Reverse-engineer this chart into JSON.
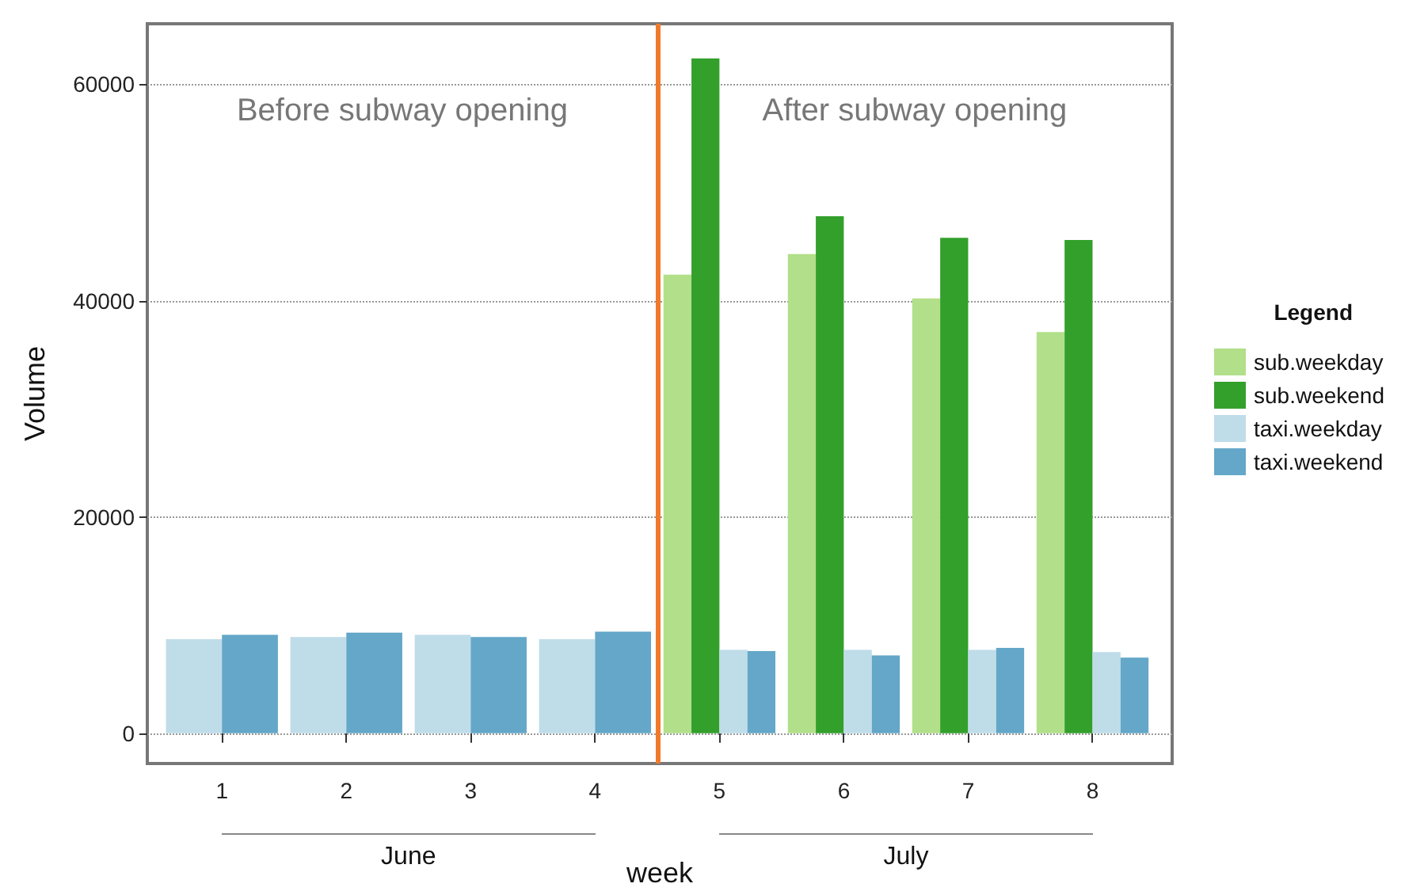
{
  "chart_data": {
    "type": "bar",
    "xlabel": "week",
    "ylabel": "Volume",
    "legend_title": "Legend",
    "x": [
      1,
      2,
      3,
      4,
      5,
      6,
      7,
      8
    ],
    "series": [
      {
        "name": "sub.weekday",
        "color": "#b2df8a",
        "values": [
          null,
          null,
          null,
          null,
          42400,
          44300,
          40200,
          37100
        ]
      },
      {
        "name": "sub.weekend",
        "color": "#33a02c",
        "values": [
          null,
          null,
          null,
          null,
          62400,
          47800,
          45800,
          45600
        ]
      },
      {
        "name": "taxi.weekday",
        "color": "#bfdce9",
        "values": [
          8700,
          8900,
          9100,
          8700,
          7700,
          7700,
          7700,
          7500
        ]
      },
      {
        "name": "taxi.weekend",
        "color": "#64a7c8",
        "values": [
          9100,
          9300,
          8900,
          9400,
          7600,
          7200,
          7900,
          7000
        ]
      }
    ],
    "xlim": [
      0.4,
      8.64
    ],
    "xticks": [
      1,
      2,
      3,
      4,
      5,
      6,
      7,
      8
    ],
    "ylim": [
      -2800,
      65600
    ],
    "yticks": [
      0,
      20000,
      40000,
      60000
    ],
    "ref_lines": [
      {
        "axis": "x",
        "value": 4.5,
        "color": "#f07a2a",
        "line_style": "solid"
      }
    ],
    "annotations": [
      "Before subway opening",
      "After subway opening",
      "June",
      "July"
    ],
    "grid": "y",
    "legend": "right"
  }
}
